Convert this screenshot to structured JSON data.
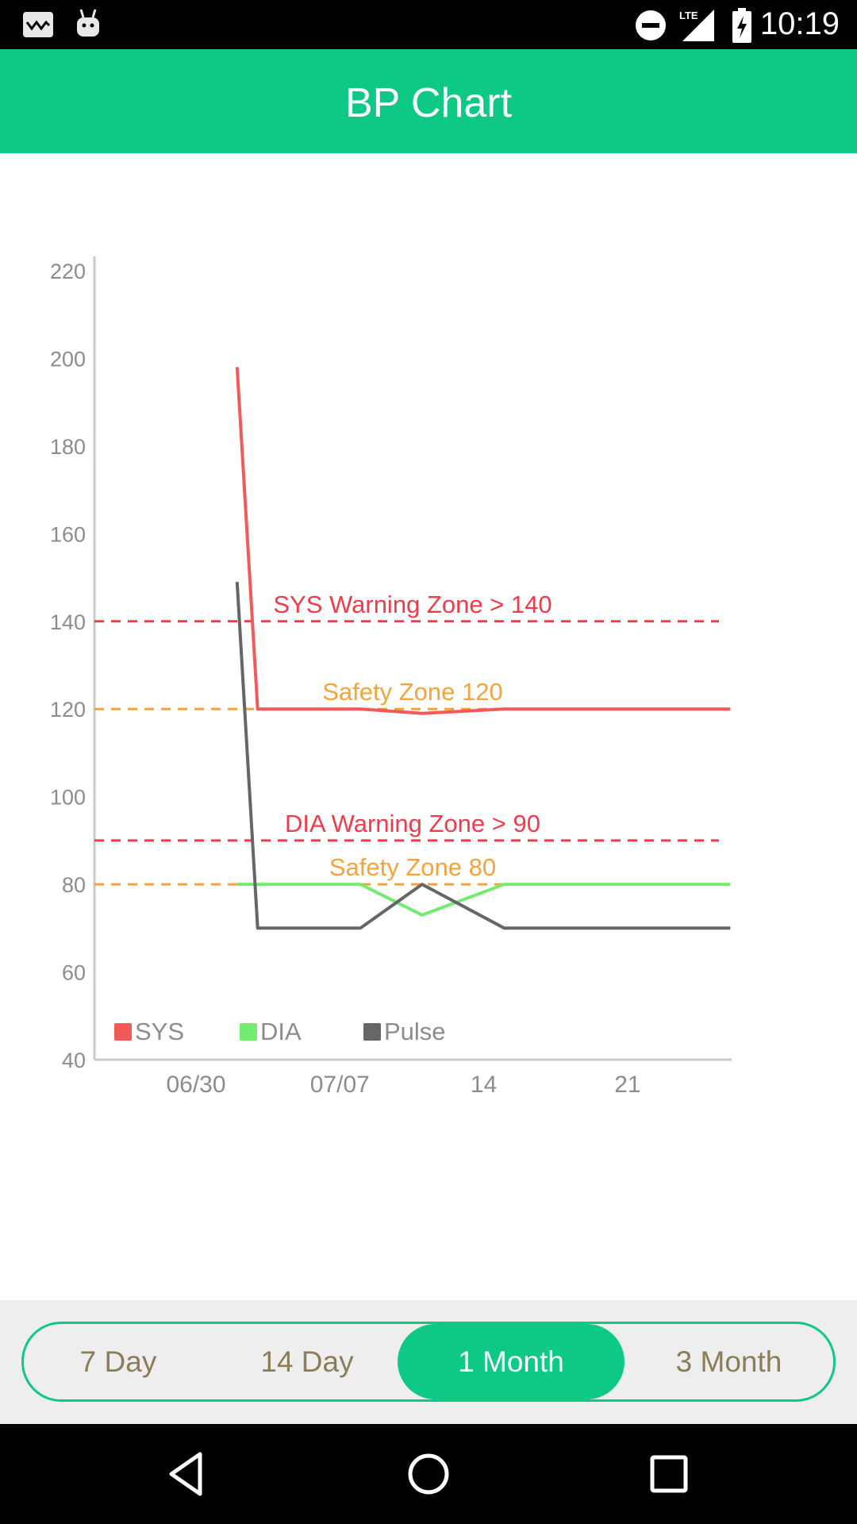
{
  "status_bar": {
    "time": "10:19",
    "left_icons": [
      "screenshot-notification-icon",
      "android-debug-icon"
    ],
    "right_icons": [
      "do-not-disturb-icon",
      "lte-signal-icon",
      "battery-charging-icon"
    ],
    "network_label": "LTE"
  },
  "app_bar": {
    "title": "BP Chart",
    "color": "#0dc985"
  },
  "chart_data": {
    "type": "line",
    "title": "",
    "xlabel": "",
    "ylabel": "",
    "ylim": [
      40,
      220
    ],
    "yticks": [
      40,
      60,
      80,
      100,
      120,
      140,
      160,
      180,
      200,
      220
    ],
    "xticks": [
      {
        "date": "06/30",
        "label": "06/30"
      },
      {
        "date": "07/07",
        "label": "07/07"
      },
      {
        "date": "07/14",
        "label": "14"
      },
      {
        "date": "07/21",
        "label": "21"
      }
    ],
    "xlim": [
      "06/27",
      "07/31"
    ],
    "legend_position": "bottom-left",
    "series": [
      {
        "name": "SYS",
        "color": "#f25a5a",
        "points": [
          [
            "07/02",
            198
          ],
          [
            "07/03",
            120
          ],
          [
            "07/08",
            120
          ],
          [
            "07/11",
            119
          ],
          [
            "07/15",
            120
          ],
          [
            "07/26",
            120
          ]
        ]
      },
      {
        "name": "DIA",
        "color": "#74ec6f",
        "points": [
          [
            "07/02",
            80
          ],
          [
            "07/03",
            80
          ],
          [
            "07/08",
            80
          ],
          [
            "07/11",
            73
          ],
          [
            "07/15",
            80
          ],
          [
            "07/26",
            80
          ]
        ]
      },
      {
        "name": "Pulse",
        "color": "#666666",
        "points": [
          [
            "07/02",
            149
          ],
          [
            "07/03",
            70
          ],
          [
            "07/08",
            70
          ],
          [
            "07/11",
            80
          ],
          [
            "07/15",
            70
          ],
          [
            "07/26",
            70
          ]
        ]
      }
    ],
    "reference_lines": [
      {
        "value": 140,
        "label": "SYS Warning Zone > 140",
        "color": "#f23a4a"
      },
      {
        "value": 120,
        "label": "Safety Zone 120",
        "color": "#f5a33a"
      },
      {
        "value": 90,
        "label": "DIA Warning Zone > 90",
        "color": "#f23a4a"
      },
      {
        "value": 80,
        "label": "Safety Zone 80",
        "color": "#f5a33a"
      }
    ],
    "grid": false
  },
  "range_selector": {
    "options": [
      "7 Day",
      "14 Day",
      "1 Month",
      "3 Month"
    ],
    "selected": "1 Month",
    "active_color": "#0dc985"
  },
  "nav_bar": {
    "buttons": [
      "back-icon",
      "home-icon",
      "recents-icon"
    ]
  }
}
